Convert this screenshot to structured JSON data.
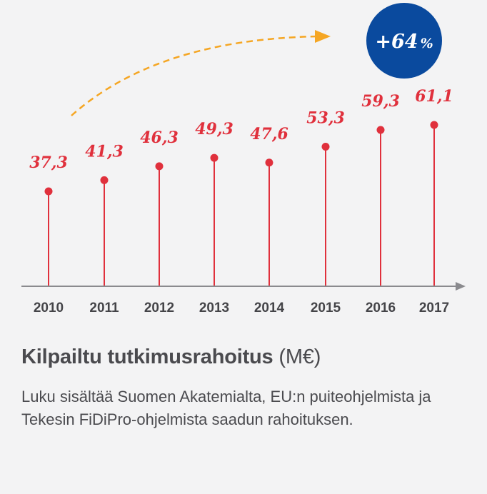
{
  "chart_data": {
    "type": "lollipop",
    "categories": [
      "2010",
      "2011",
      "2012",
      "2013",
      "2014",
      "2015",
      "2016",
      "2017"
    ],
    "values": [
      37.3,
      41.3,
      46.3,
      49.3,
      47.6,
      53.3,
      59.3,
      61.1
    ],
    "value_labels": [
      "37,3",
      "41,3",
      "46,3",
      "49,3",
      "47,6",
      "53,3",
      "59,3",
      "61,1"
    ],
    "ylim": [
      0,
      62
    ],
    "title": "Kilpailtu tutkimusrahoitus",
    "unit": "(M€)",
    "description": "Luku sisältää Suomen Akatemialta, EU:n puiteohjelmista ja Tekesin FiDiPro-ohjelmista saadun rahoituksen.",
    "annotation": {
      "value": "+64",
      "unit": "%"
    },
    "colors": {
      "series": "#e0303c",
      "badge": "#0a4a9e",
      "arrow": "#f5a623",
      "axis": "#8a8a8e"
    }
  }
}
